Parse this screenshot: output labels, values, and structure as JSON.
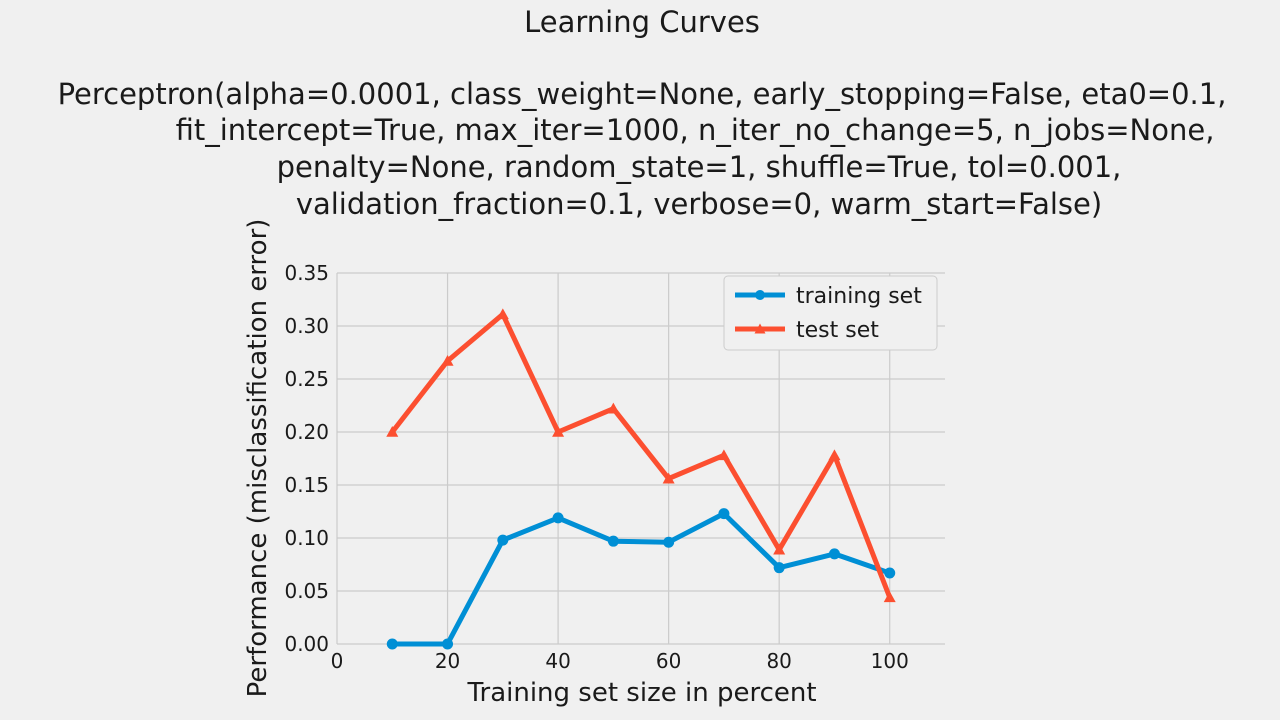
{
  "chart_data": {
    "type": "line",
    "title": "Learning Curves",
    "subtitle_lines": [
      "Perceptron(alpha=0.0001, class_weight=None, early_stopping=False, eta0=0.1,",
      "fit_intercept=True, max_iter=1000, n_iter_no_change=5, n_jobs=None,",
      "penalty=None, random_state=1, shuffle=True, tol=0.001,",
      "validation_fraction=0.1, verbose=0, warm_start=False)"
    ],
    "xlabel": "Training set size in percent",
    "ylabel": "Performance (misclassification error)",
    "xlim": [
      0,
      110
    ],
    "ylim": [
      0,
      0.35
    ],
    "xticks": [
      0,
      20,
      40,
      60,
      80,
      100
    ],
    "yticks": [
      0.0,
      0.05,
      0.1,
      0.15,
      0.2,
      0.25,
      0.3,
      0.35
    ],
    "xtick_labels": [
      "0",
      "20",
      "40",
      "60",
      "80",
      "100"
    ],
    "ytick_labels": [
      "0.00",
      "0.05",
      "0.10",
      "0.15",
      "0.20",
      "0.25",
      "0.30",
      "0.35"
    ],
    "grid": true,
    "legend_position": "upper right",
    "x": [
      10,
      20,
      30,
      40,
      50,
      60,
      70,
      80,
      90,
      100
    ],
    "series": [
      {
        "name": "training set",
        "marker": "circle",
        "color": "#008fd5",
        "values": [
          0.0,
          0.0,
          0.098,
          0.119,
          0.097,
          0.096,
          0.123,
          0.072,
          0.085,
          0.067
        ]
      },
      {
        "name": "test set",
        "marker": "triangle",
        "color": "#fc4f30",
        "values": [
          0.2,
          0.267,
          0.311,
          0.2,
          0.222,
          0.156,
          0.178,
          0.089,
          0.178,
          0.044
        ]
      }
    ]
  }
}
